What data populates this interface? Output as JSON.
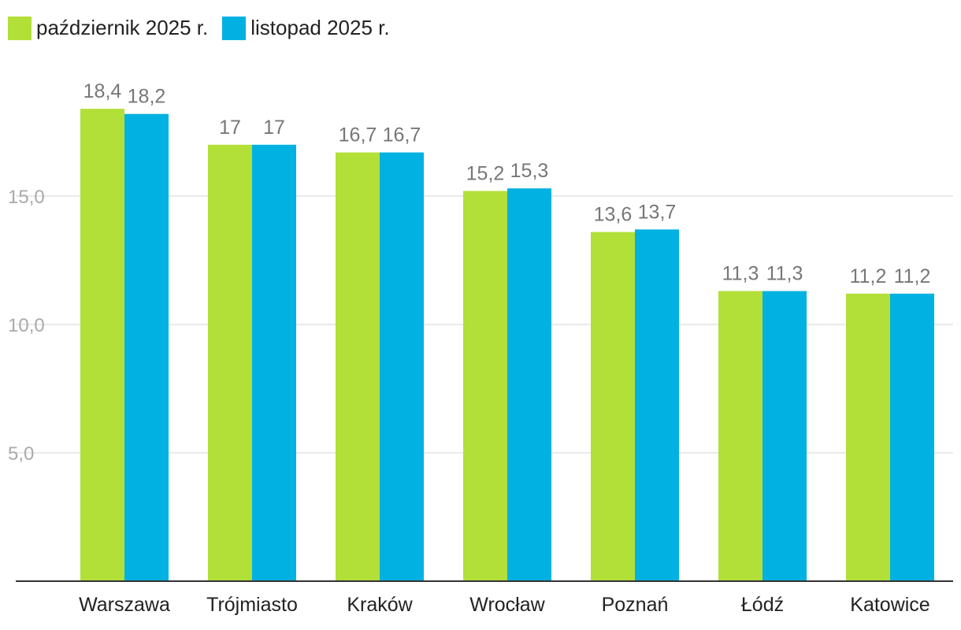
{
  "legend": {
    "items": [
      {
        "label": "październik 2025 r.",
        "color": "#b2df38"
      },
      {
        "label": "listopad 2025 r.",
        "color": "#00b1e1"
      }
    ]
  },
  "chart_data": {
    "type": "bar",
    "categories": [
      "Warszawa",
      "Trójmiasto",
      "Kraków",
      "Wrocław",
      "Poznań",
      "Łódź",
      "Katowice"
    ],
    "series": [
      {
        "name": "październik 2025 r.",
        "color": "#b2df38",
        "values": [
          18.4,
          17,
          16.7,
          15.2,
          13.6,
          11.3,
          11.2
        ],
        "labels": [
          "18,4",
          "17",
          "16,7",
          "15,2",
          "13,6",
          "11,3",
          "11,2"
        ]
      },
      {
        "name": "listopad 2025 r.",
        "color": "#00b1e1",
        "values": [
          18.2,
          17,
          16.7,
          15.3,
          13.7,
          11.3,
          11.2
        ],
        "labels": [
          "18,2",
          "17",
          "16,7",
          "15,3",
          "13,7",
          "11,3",
          "11,2"
        ]
      }
    ],
    "yticks": [
      {
        "value": 5,
        "label": "5,0"
      },
      {
        "value": 10,
        "label": "10,0"
      },
      {
        "value": 15,
        "label": "15,0"
      }
    ],
    "ylim": [
      0,
      20
    ],
    "grid": true,
    "legend_position": "top-left"
  }
}
